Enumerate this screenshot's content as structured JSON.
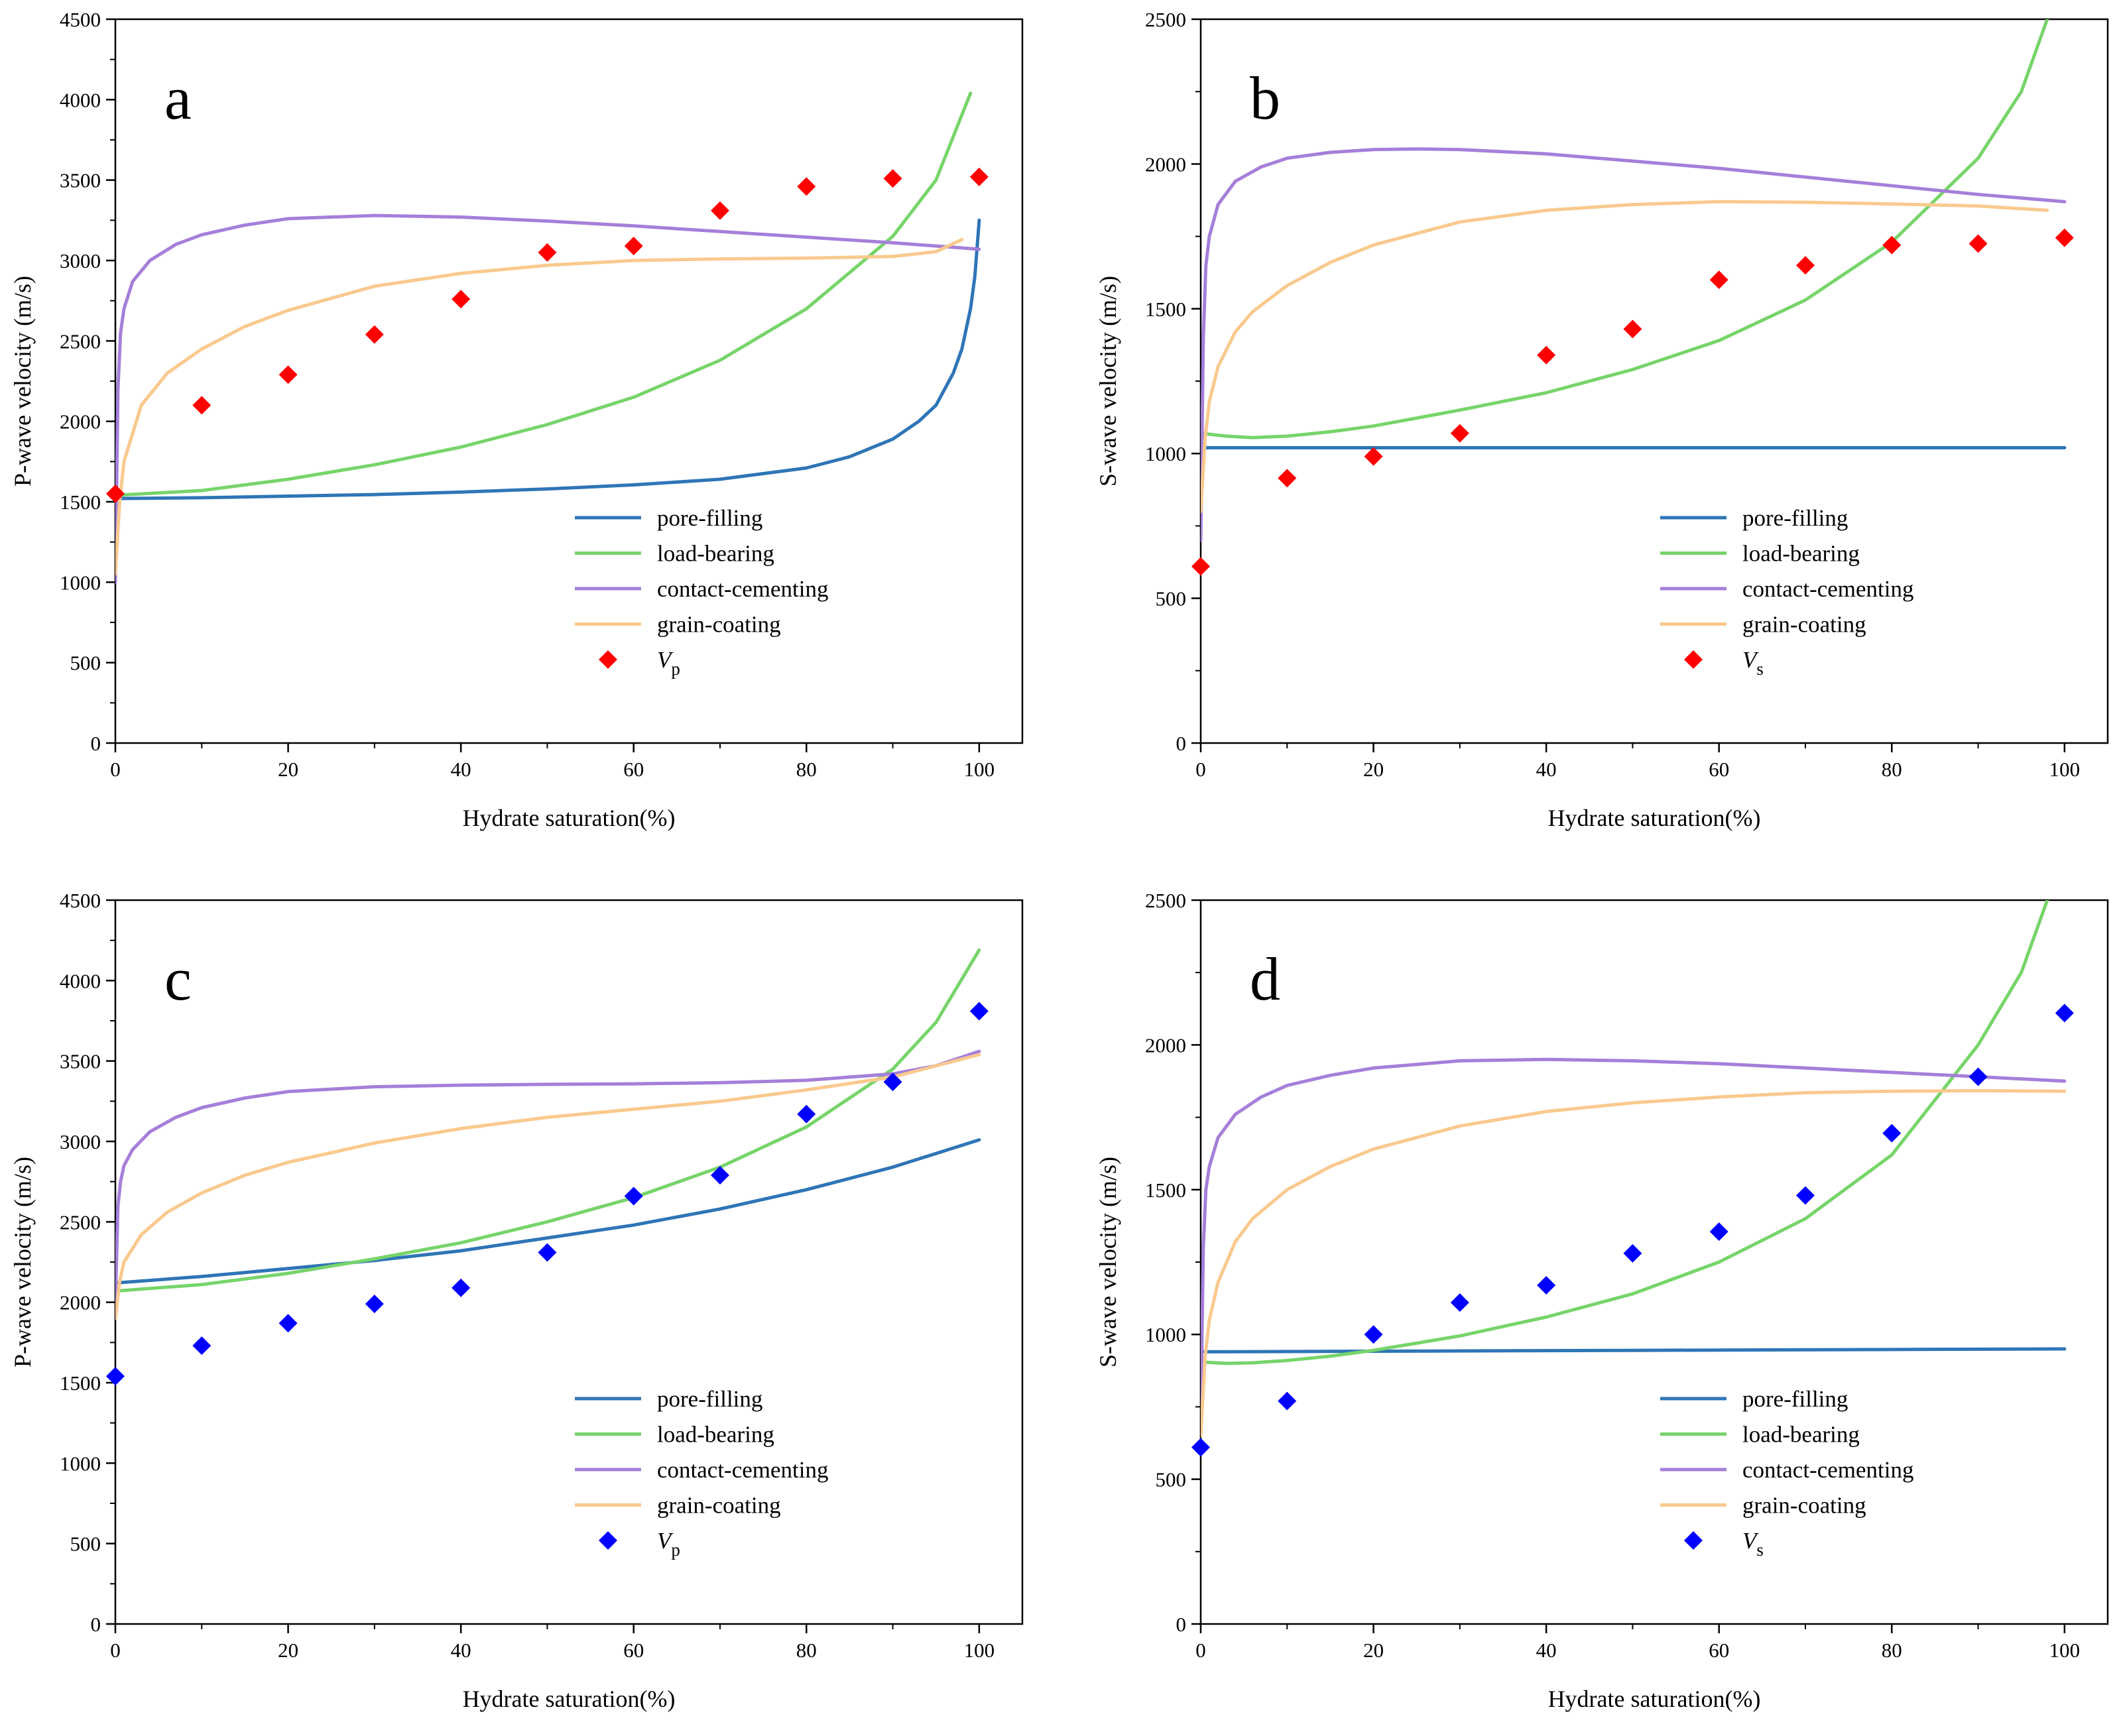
{
  "figure": {
    "colors": {
      "pore_filling": "#2e75b6",
      "load_bearing": "#77d46a",
      "contact_cementing": "#a57fd9",
      "grain_coating": "#f9c98e",
      "vp_marker_top": "#ff0000",
      "vs_marker_top": "#ff0000",
      "marker_bottom": "#0000ff"
    }
  },
  "chart_data": [
    {
      "type": "line",
      "panel": "a",
      "xlabel": "Hydrate saturation(%)",
      "ylabel": "P-wave velocity (m/s)",
      "xlim": [
        0,
        105
      ],
      "ylim": [
        0,
        4500
      ],
      "xticks": [
        0,
        20,
        40,
        60,
        80,
        100
      ],
      "yticks": [
        0,
        500,
        1000,
        1500,
        2000,
        2500,
        3000,
        3500,
        4000,
        4500
      ],
      "legend_position": "bottom-right",
      "series": [
        {
          "name": "pore-filling",
          "color_key": "pore_filling",
          "x": [
            0,
            10,
            20,
            30,
            40,
            50,
            60,
            70,
            80,
            85,
            90,
            93,
            95,
            97,
            98,
            99,
            99.5,
            100
          ],
          "y": [
            1520,
            1525,
            1535,
            1545,
            1560,
            1580,
            1605,
            1640,
            1710,
            1780,
            1890,
            2000,
            2100,
            2300,
            2450,
            2700,
            2900,
            3250
          ]
        },
        {
          "name": "load-bearing",
          "color_key": "load_bearing",
          "x": [
            0,
            10,
            20,
            30,
            40,
            50,
            60,
            70,
            80,
            90,
            95,
            99
          ],
          "y": [
            1540,
            1570,
            1640,
            1730,
            1840,
            1980,
            2150,
            2380,
            2700,
            3150,
            3500,
            4040
          ]
        },
        {
          "name": "contact-cementing",
          "color_key": "contact_cementing",
          "x": [
            0,
            0.3,
            0.6,
            1,
            2,
            4,
            7,
            10,
            15,
            20,
            30,
            40,
            50,
            60,
            70,
            80,
            90,
            100
          ],
          "y": [
            1000,
            2200,
            2550,
            2700,
            2870,
            3000,
            3100,
            3160,
            3220,
            3260,
            3280,
            3270,
            3245,
            3215,
            3180,
            3145,
            3110,
            3070
          ]
        },
        {
          "name": "grain-coating",
          "color_key": "grain_coating",
          "x": [
            0,
            0.5,
            1,
            3,
            6,
            10,
            15,
            20,
            30,
            40,
            50,
            60,
            70,
            80,
            90,
            95,
            98
          ],
          "y": [
            1050,
            1500,
            1750,
            2100,
            2300,
            2450,
            2590,
            2690,
            2840,
            2920,
            2970,
            3000,
            3010,
            3015,
            3025,
            3055,
            3130
          ]
        }
      ],
      "markers": {
        "name": "V",
        "sub": "p",
        "color_key": "vp_marker_top",
        "x": [
          0,
          10,
          20,
          30,
          40,
          50,
          60,
          70,
          80,
          90,
          100
        ],
        "y": [
          1550,
          2100,
          2290,
          2540,
          2760,
          3050,
          3090,
          3310,
          3460,
          3510,
          3520
        ]
      }
    },
    {
      "type": "line",
      "panel": "b",
      "xlabel": "Hydrate saturation(%)",
      "ylabel": "S-wave velocity (m/s)",
      "xlim": [
        0,
        105
      ],
      "ylim": [
        0,
        2500
      ],
      "xticks": [
        0,
        20,
        40,
        60,
        80,
        100
      ],
      "yticks": [
        0,
        500,
        1000,
        1500,
        2000,
        2500
      ],
      "legend_position": "bottom-right",
      "series": [
        {
          "name": "pore-filling",
          "color_key": "pore_filling",
          "x": [
            0,
            100
          ],
          "y": [
            1020,
            1020
          ]
        },
        {
          "name": "load-bearing",
          "color_key": "load_bearing",
          "x": [
            0,
            3,
            6,
            10,
            15,
            20,
            30,
            40,
            50,
            60,
            70,
            80,
            90,
            95,
            98
          ],
          "y": [
            1070,
            1060,
            1055,
            1060,
            1075,
            1095,
            1150,
            1210,
            1290,
            1390,
            1530,
            1730,
            2020,
            2250,
            2500
          ]
        },
        {
          "name": "contact-cementing",
          "color_key": "contact_cementing",
          "x": [
            0,
            0.3,
            0.6,
            1,
            2,
            4,
            7,
            10,
            15,
            20,
            25,
            30,
            40,
            50,
            60,
            70,
            80,
            90,
            100
          ],
          "y": [
            700,
            1400,
            1650,
            1750,
            1860,
            1940,
            1990,
            2020,
            2040,
            2050,
            2052,
            2050,
            2035,
            2010,
            1985,
            1955,
            1925,
            1895,
            1870
          ]
        },
        {
          "name": "grain-coating",
          "color_key": "grain_coating",
          "x": [
            0,
            0.5,
            1,
            2,
            4,
            6,
            10,
            15,
            20,
            30,
            40,
            50,
            60,
            70,
            80,
            90,
            98
          ],
          "y": [
            800,
            1050,
            1180,
            1300,
            1420,
            1490,
            1580,
            1660,
            1720,
            1800,
            1840,
            1860,
            1870,
            1868,
            1862,
            1855,
            1840
          ]
        }
      ],
      "markers": {
        "name": "V",
        "sub": "s",
        "color_key": "vs_marker_top",
        "x": [
          0,
          10,
          20,
          30,
          40,
          50,
          60,
          70,
          80,
          90,
          100
        ],
        "y": [
          610,
          915,
          990,
          1070,
          1340,
          1430,
          1600,
          1650,
          1720,
          1725,
          1745
        ]
      }
    },
    {
      "type": "line",
      "panel": "c",
      "xlabel": "Hydrate saturation(%)",
      "ylabel": "P-wave velocity (m/s)",
      "xlim": [
        0,
        105
      ],
      "ylim": [
        0,
        4500
      ],
      "xticks": [
        0,
        20,
        40,
        60,
        80,
        100
      ],
      "yticks": [
        0,
        500,
        1000,
        1500,
        2000,
        2500,
        3000,
        3500,
        4000,
        4500
      ],
      "legend_position": "bottom-right",
      "series": [
        {
          "name": "pore-filling",
          "color_key": "pore_filling",
          "x": [
            0,
            10,
            20,
            30,
            40,
            50,
            60,
            70,
            80,
            90,
            100
          ],
          "y": [
            2120,
            2160,
            2210,
            2260,
            2320,
            2400,
            2480,
            2580,
            2700,
            2840,
            3010
          ]
        },
        {
          "name": "load-bearing",
          "color_key": "load_bearing",
          "x": [
            0,
            10,
            20,
            30,
            40,
            50,
            60,
            70,
            80,
            90,
            95,
            100
          ],
          "y": [
            2070,
            2110,
            2180,
            2270,
            2370,
            2500,
            2650,
            2840,
            3090,
            3450,
            3740,
            4190
          ]
        },
        {
          "name": "contact-cementing",
          "color_key": "contact_cementing",
          "x": [
            0,
            0.3,
            0.6,
            1,
            2,
            4,
            7,
            10,
            15,
            20,
            30,
            40,
            50,
            60,
            70,
            80,
            90,
            95,
            100
          ],
          "y": [
            2000,
            2600,
            2750,
            2850,
            2950,
            3060,
            3150,
            3210,
            3270,
            3310,
            3340,
            3350,
            3355,
            3358,
            3365,
            3380,
            3420,
            3470,
            3560
          ]
        },
        {
          "name": "grain-coating",
          "color_key": "grain_coating",
          "x": [
            0,
            0.5,
            1,
            3,
            6,
            10,
            15,
            20,
            30,
            40,
            50,
            60,
            70,
            80,
            90,
            100
          ],
          "y": [
            1900,
            2130,
            2250,
            2420,
            2560,
            2680,
            2790,
            2870,
            2990,
            3080,
            3150,
            3200,
            3250,
            3320,
            3400,
            3540
          ]
        }
      ],
      "markers": {
        "name": "V",
        "sub": "p",
        "color_key": "marker_bottom",
        "x": [
          0,
          10,
          20,
          30,
          40,
          50,
          60,
          70,
          80,
          90,
          100
        ],
        "y": [
          1540,
          1730,
          1870,
          1990,
          2090,
          2310,
          2660,
          2790,
          3170,
          3370,
          3810
        ]
      }
    },
    {
      "type": "line",
      "panel": "d",
      "xlabel": "Hydrate saturation(%)",
      "ylabel": "S-wave velocity (m/s)",
      "xlim": [
        0,
        105
      ],
      "ylim": [
        0,
        2500
      ],
      "xticks": [
        0,
        20,
        40,
        60,
        80,
        100
      ],
      "yticks": [
        0,
        500,
        1000,
        1500,
        2000,
        2500
      ],
      "legend_position": "bottom-right",
      "series": [
        {
          "name": "pore-filling",
          "color_key": "pore_filling",
          "x": [
            0,
            50,
            100
          ],
          "y": [
            940,
            945,
            950
          ]
        },
        {
          "name": "load-bearing",
          "color_key": "load_bearing",
          "x": [
            0,
            3,
            6,
            10,
            15,
            20,
            30,
            40,
            50,
            60,
            70,
            80,
            90,
            95,
            98
          ],
          "y": [
            905,
            900,
            902,
            910,
            925,
            945,
            995,
            1060,
            1140,
            1250,
            1400,
            1620,
            2000,
            2250,
            2500
          ]
        },
        {
          "name": "contact-cementing",
          "color_key": "contact_cementing",
          "x": [
            0,
            0.3,
            0.6,
            1,
            2,
            4,
            7,
            10,
            15,
            20,
            30,
            40,
            50,
            60,
            70,
            80,
            90,
            100
          ],
          "y": [
            700,
            1300,
            1500,
            1580,
            1680,
            1760,
            1820,
            1860,
            1895,
            1920,
            1945,
            1950,
            1945,
            1935,
            1920,
            1905,
            1890,
            1875
          ]
        },
        {
          "name": "grain-coating",
          "color_key": "grain_coating",
          "x": [
            0,
            0.5,
            1,
            2,
            4,
            6,
            10,
            15,
            20,
            30,
            40,
            50,
            60,
            70,
            80,
            90,
            100
          ],
          "y": [
            650,
            920,
            1050,
            1180,
            1320,
            1400,
            1500,
            1580,
            1640,
            1720,
            1770,
            1800,
            1820,
            1835,
            1840,
            1842,
            1840
          ]
        }
      ],
      "markers": {
        "name": "V",
        "sub": "s",
        "color_key": "marker_bottom",
        "x": [
          0,
          10,
          20,
          30,
          40,
          50,
          60,
          70,
          80,
          90,
          100
        ],
        "y": [
          610,
          770,
          1000,
          1110,
          1170,
          1280,
          1355,
          1480,
          1695,
          1890,
          2110
        ]
      }
    }
  ]
}
